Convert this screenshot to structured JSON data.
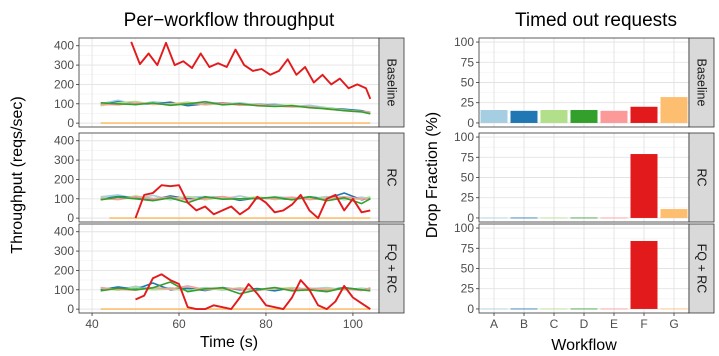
{
  "chart_data": [
    {
      "type": "line",
      "title": "Per−workflow throughput",
      "xlabel": "Time (s)",
      "ylabel": "Throughput (reqs/sec)",
      "xlim": [
        37,
        106
      ],
      "ylim": [
        -20,
        440
      ],
      "x_ticks": [
        "40",
        "60",
        "80",
        "100"
      ],
      "y_ticks": [
        "0",
        "100",
        "200",
        "300",
        "400"
      ],
      "grid": true,
      "colors": {
        "A": "#a6cee3",
        "B": "#1f78b4",
        "C": "#b2df8a",
        "D": "#33a02c",
        "E": "#fb9a99",
        "F": "#e31a1c",
        "G": "#fdbf6f"
      },
      "panels": [
        {
          "label": "Baseline",
          "series": [
            {
              "workflow": "A",
              "x": [
                42,
                46,
                50,
                54,
                58,
                62,
                66,
                70,
                74,
                78,
                82,
                86,
                90,
                94,
                98,
                102,
                104
              ],
              "y": [
                100,
                118,
                95,
                110,
                102,
                96,
                112,
                98,
                105,
                94,
                100,
                85,
                92,
                80,
                70,
                62,
                58
              ]
            },
            {
              "workflow": "B",
              "x": [
                42,
                46,
                50,
                54,
                58,
                62,
                66,
                70,
                74,
                78,
                82,
                86,
                90,
                94,
                98,
                102,
                104
              ],
              "y": [
                95,
                110,
                102,
                98,
                108,
                90,
                100,
                105,
                96,
                98,
                92,
                88,
                84,
                76,
                72,
                64,
                52
              ]
            },
            {
              "workflow": "C",
              "x": [
                42,
                46,
                50,
                54,
                58,
                62,
                66,
                70,
                74,
                78,
                82,
                86,
                90,
                94,
                98,
                102,
                104
              ],
              "y": [
                90,
                105,
                112,
                96,
                100,
                108,
                94,
                102,
                99,
                96,
                90,
                92,
                82,
                78,
                68,
                60,
                50
              ]
            },
            {
              "workflow": "D",
              "x": [
                42,
                46,
                50,
                54,
                58,
                62,
                66,
                70,
                74,
                78,
                82,
                86,
                90,
                94,
                98,
                102,
                104
              ],
              "y": [
                105,
                100,
                96,
                104,
                92,
                100,
                110,
                95,
                100,
                90,
                86,
                90,
                80,
                74,
                64,
                58,
                48
              ]
            },
            {
              "workflow": "E",
              "x": [
                42,
                46,
                50,
                54,
                58,
                62,
                66,
                70,
                74,
                78,
                82,
                86,
                90,
                94,
                98,
                102,
                104
              ],
              "y": [
                98,
                95,
                104,
                100,
                96,
                102,
                98,
                104,
                92,
                96,
                88,
                84,
                86,
                72,
                66,
                60,
                56
              ]
            },
            {
              "workflow": "F",
              "x": [
                49,
                51,
                53,
                55,
                57,
                59,
                61,
                63,
                65,
                67,
                69,
                71,
                73,
                75,
                77,
                79,
                81,
                83,
                85,
                87,
                89,
                91,
                93,
                95,
                97,
                99,
                101,
                103,
                104
              ],
              "y": [
                420,
                305,
                360,
                300,
                415,
                300,
                320,
                285,
                360,
                290,
                310,
                290,
                380,
                300,
                270,
                280,
                250,
                270,
                330,
                250,
                290,
                210,
                250,
                200,
                230,
                180,
                200,
                180,
                125
              ]
            },
            {
              "workflow": "G",
              "x": [
                42,
                104
              ],
              "y": [
                0,
                0
              ]
            }
          ]
        },
        {
          "label": "RC",
          "series": [
            {
              "workflow": "A",
              "x": [
                42,
                46,
                50,
                54,
                58,
                62,
                66,
                70,
                74,
                78,
                82,
                86,
                90,
                94,
                98,
                102,
                104
              ],
              "y": [
                110,
                120,
                100,
                118,
                95,
                108,
                112,
                100,
                115,
                98,
                110,
                105,
                100,
                112,
                95,
                108,
                100
              ]
            },
            {
              "workflow": "B",
              "x": [
                42,
                46,
                50,
                54,
                58,
                62,
                66,
                70,
                74,
                78,
                82,
                86,
                90,
                94,
                98,
                102,
                104
              ],
              "y": [
                100,
                112,
                108,
                95,
                115,
                100,
                105,
                110,
                92,
                105,
                100,
                98,
                110,
                100,
                130,
                95,
                105
              ]
            },
            {
              "workflow": "C",
              "x": [
                42,
                46,
                50,
                54,
                58,
                62,
                66,
                70,
                74,
                78,
                82,
                86,
                90,
                94,
                98,
                102,
                104
              ],
              "y": [
                105,
                98,
                115,
                102,
                100,
                112,
                95,
                108,
                100,
                110,
                96,
                104,
                100,
                106,
                100,
                98,
                110
              ]
            },
            {
              "workflow": "D",
              "x": [
                42,
                46,
                50,
                54,
                58,
                62,
                66,
                70,
                74,
                78,
                82,
                86,
                90,
                94,
                98,
                102,
                104
              ],
              "y": [
                95,
                108,
                100,
                90,
                105,
                80,
                110,
                98,
                100,
                102,
                108,
                95,
                110,
                90,
                105,
                75,
                100
              ]
            },
            {
              "workflow": "E",
              "x": [
                42,
                46,
                50,
                54,
                58,
                62,
                66,
                70,
                74,
                78,
                82,
                86,
                90,
                94,
                98,
                102,
                104
              ],
              "y": [
                102,
                96,
                110,
                100,
                108,
                95,
                100,
                112,
                98,
                104,
                100,
                108,
                96,
                102,
                110,
                100,
                98
              ]
            },
            {
              "workflow": "F",
              "x": [
                50,
                52,
                54,
                56,
                58,
                60,
                62,
                64,
                66,
                68,
                70,
                72,
                74,
                76,
                78,
                80,
                82,
                84,
                86,
                88,
                90,
                92,
                94,
                96,
                98,
                100,
                102,
                104
              ],
              "y": [
                0,
                120,
                130,
                170,
                165,
                170,
                80,
                40,
                60,
                20,
                40,
                60,
                20,
                50,
                110,
                80,
                30,
                40,
                70,
                120,
                40,
                0,
                100,
                120,
                40,
                100,
                30,
                40
              ]
            },
            {
              "workflow": "G",
              "x": [
                44,
                104
              ],
              "y": [
                0,
                0
              ]
            }
          ]
        },
        {
          "label": "FQ + RC",
          "series": [
            {
              "workflow": "A",
              "x": [
                42,
                46,
                50,
                54,
                58,
                62,
                66,
                70,
                74,
                78,
                82,
                86,
                90,
                94,
                98,
                102,
                104
              ],
              "y": [
                112,
                100,
                118,
                105,
                110,
                100,
                112,
                98,
                108,
                102,
                110,
                100,
                105,
                112,
                100,
                108,
                104
              ]
            },
            {
              "workflow": "B",
              "x": [
                42,
                46,
                50,
                54,
                58,
                62,
                66,
                70,
                74,
                78,
                82,
                86,
                90,
                94,
                98,
                102,
                104
              ],
              "y": [
                100,
                115,
                102,
                135,
                100,
                108,
                96,
                112,
                100,
                106,
                95,
                110,
                102,
                98,
                112,
                100,
                106
              ]
            },
            {
              "workflow": "C",
              "x": [
                42,
                46,
                50,
                54,
                58,
                62,
                66,
                70,
                74,
                78,
                82,
                86,
                90,
                94,
                98,
                102,
                104
              ],
              "y": [
                108,
                98,
                112,
                100,
                104,
                96,
                108,
                100,
                110,
                98,
                104,
                112,
                96,
                108,
                100,
                104,
                98
              ]
            },
            {
              "workflow": "D",
              "x": [
                42,
                46,
                50,
                54,
                58,
                62,
                66,
                70,
                74,
                78,
                82,
                86,
                90,
                94,
                98,
                102,
                104
              ],
              "y": [
                95,
                108,
                100,
                110,
                140,
                90,
                105,
                110,
                80,
                100,
                112,
                95,
                100,
                90,
                110,
                100,
                95
              ]
            },
            {
              "workflow": "E",
              "x": [
                42,
                46,
                50,
                54,
                58,
                62,
                66,
                70,
                74,
                78,
                82,
                86,
                90,
                94,
                98,
                102,
                104
              ],
              "y": [
                110,
                102,
                98,
                112,
                104,
                120,
                100,
                108,
                104,
                96,
                110,
                102,
                108,
                100,
                104,
                96,
                110
              ]
            },
            {
              "workflow": "F",
              "x": [
                50,
                52,
                54,
                56,
                58,
                60,
                62,
                64,
                66,
                68,
                70,
                72,
                74,
                76,
                78,
                80,
                82,
                84,
                86,
                88,
                90,
                92,
                94,
                96,
                98,
                100,
                102,
                104
              ],
              "y": [
                50,
                70,
                160,
                180,
                150,
                130,
                10,
                0,
                0,
                20,
                10,
                0,
                60,
                130,
                80,
                20,
                10,
                0,
                60,
                150,
                100,
                20,
                0,
                40,
                120,
                60,
                30,
                0
              ]
            },
            {
              "workflow": "G",
              "x": [
                42,
                104
              ],
              "y": [
                0,
                0
              ]
            }
          ]
        }
      ]
    },
    {
      "type": "bar",
      "title": "Timed out requests",
      "xlabel": "Workflow",
      "ylabel": "Drop Fraction (%)",
      "ylim": [
        -5,
        105
      ],
      "y_ticks": [
        "0",
        "25",
        "50",
        "75",
        "100"
      ],
      "categories": [
        "A",
        "B",
        "C",
        "D",
        "E",
        "F",
        "G"
      ],
      "grid": true,
      "colors": [
        "#a6cee3",
        "#1f78b4",
        "#b2df8a",
        "#33a02c",
        "#fb9a99",
        "#e31a1c",
        "#fdbf6f"
      ],
      "panels": [
        {
          "label": "Baseline",
          "values": [
            16,
            15,
            16,
            16,
            15,
            20,
            32
          ]
        },
        {
          "label": "RC",
          "values": [
            0.5,
            0.5,
            0.5,
            0.5,
            0.5,
            79,
            11
          ]
        },
        {
          "label": "FQ + RC",
          "values": [
            0.5,
            0.5,
            0.5,
            0.5,
            0.5,
            84,
            0.5
          ]
        }
      ]
    }
  ]
}
